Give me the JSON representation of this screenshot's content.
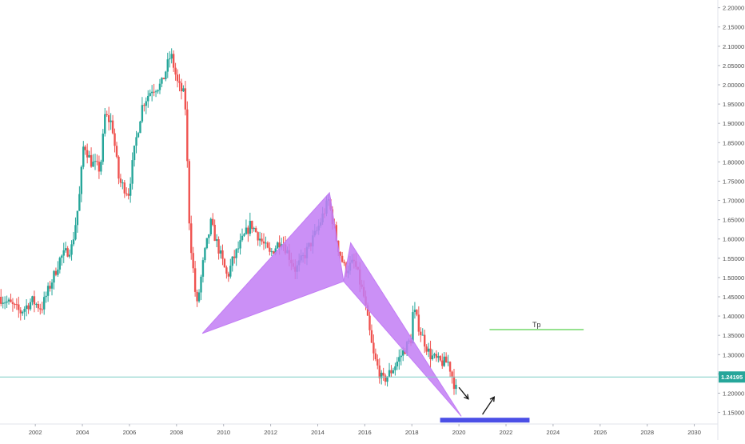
{
  "chart_data": {
    "type": "candlestick",
    "x_range": [
      2000.5,
      2031.0
    ],
    "y_range": [
      1.12,
      2.22
    ],
    "x_ticks": [
      {
        "value": 2002,
        "label": "2002"
      },
      {
        "value": 2004,
        "label": "2004"
      },
      {
        "value": 2006,
        "label": "2006"
      },
      {
        "value": 2008,
        "label": "2008"
      },
      {
        "value": 2010,
        "label": "2010"
      },
      {
        "value": 2012,
        "label": "2012"
      },
      {
        "value": 2014,
        "label": "2014"
      },
      {
        "value": 2016,
        "label": "2016"
      },
      {
        "value": 2018,
        "label": "2018"
      },
      {
        "value": 2020,
        "label": "2020"
      },
      {
        "value": 2022,
        "label": "2022"
      },
      {
        "value": 2024,
        "label": "2024"
      },
      {
        "value": 2026,
        "label": "2026"
      },
      {
        "value": 2028,
        "label": "2028"
      },
      {
        "value": 2030,
        "label": "2030"
      }
    ],
    "y_ticks": [
      {
        "value": 1.15,
        "label": "1.15000"
      },
      {
        "value": 1.2,
        "label": "1.20000"
      },
      {
        "value": 1.25,
        "label": "1.25000"
      },
      {
        "value": 1.3,
        "label": "1.30000"
      },
      {
        "value": 1.35,
        "label": "1.35000"
      },
      {
        "value": 1.4,
        "label": "1.40000"
      },
      {
        "value": 1.45,
        "label": "1.45000"
      },
      {
        "value": 1.5,
        "label": "1.50000"
      },
      {
        "value": 1.55,
        "label": "1.55000"
      },
      {
        "value": 1.6,
        "label": "1.60000"
      },
      {
        "value": 1.65,
        "label": "1.65000"
      },
      {
        "value": 1.7,
        "label": "1.70000"
      },
      {
        "value": 1.75,
        "label": "1.75000"
      },
      {
        "value": 1.8,
        "label": "1.80000"
      },
      {
        "value": 1.85,
        "label": "1.85000"
      },
      {
        "value": 1.9,
        "label": "1.90000"
      },
      {
        "value": 1.95,
        "label": "1.95000"
      },
      {
        "value": 2.0,
        "label": "2.00000"
      },
      {
        "value": 2.05,
        "label": "2.05000"
      },
      {
        "value": 2.1,
        "label": "2.10000"
      },
      {
        "value": 2.15,
        "label": "2.15000"
      },
      {
        "value": 2.2,
        "label": "2.20000"
      }
    ],
    "price_path": [
      [
        2000.5,
        1.45
      ],
      [
        2001.0,
        1.43
      ],
      [
        2001.4,
        1.41
      ],
      [
        2001.9,
        1.44
      ],
      [
        2002.3,
        1.42
      ],
      [
        2002.8,
        1.5
      ],
      [
        2003.1,
        1.55
      ],
      [
        2003.6,
        1.58
      ],
      [
        2003.9,
        1.7
      ],
      [
        2004.1,
        1.85
      ],
      [
        2004.4,
        1.8
      ],
      [
        2004.8,
        1.78
      ],
      [
        2005.0,
        1.92
      ],
      [
        2005.3,
        1.9
      ],
      [
        2005.6,
        1.75
      ],
      [
        2006.0,
        1.72
      ],
      [
        2006.3,
        1.85
      ],
      [
        2006.6,
        1.95
      ],
      [
        2007.0,
        1.99
      ],
      [
        2007.4,
        2.0
      ],
      [
        2007.8,
        2.08
      ],
      [
        2008.1,
        2.0
      ],
      [
        2008.4,
        1.97
      ],
      [
        2008.6,
        1.62
      ],
      [
        2008.9,
        1.42
      ],
      [
        2009.2,
        1.55
      ],
      [
        2009.5,
        1.64
      ],
      [
        2009.8,
        1.58
      ],
      [
        2010.2,
        1.5
      ],
      [
        2010.4,
        1.54
      ],
      [
        2010.7,
        1.58
      ],
      [
        2011.2,
        1.64
      ],
      [
        2011.6,
        1.6
      ],
      [
        2012.0,
        1.56
      ],
      [
        2012.5,
        1.6
      ],
      [
        2013.1,
        1.52
      ],
      [
        2013.5,
        1.56
      ],
      [
        2014.0,
        1.62
      ],
      [
        2014.5,
        1.7
      ],
      [
        2014.9,
        1.58
      ],
      [
        2015.2,
        1.52
      ],
      [
        2015.6,
        1.54
      ],
      [
        2016.0,
        1.45
      ],
      [
        2016.4,
        1.3
      ],
      [
        2016.8,
        1.23
      ],
      [
        2017.2,
        1.26
      ],
      [
        2017.6,
        1.3
      ],
      [
        2018.0,
        1.34
      ],
      [
        2018.1,
        1.42
      ],
      [
        2018.4,
        1.36
      ],
      [
        2018.8,
        1.3
      ],
      [
        2019.2,
        1.28
      ],
      [
        2019.6,
        1.28
      ],
      [
        2019.9,
        1.21
      ]
    ],
    "current_price": {
      "value": 1.24195,
      "label": "1.24195"
    },
    "pattern": {
      "name": "bullish harmonic pattern",
      "color": "#c27cf4",
      "point_X": [
        2009.1,
        1.355
      ],
      "point_A": [
        2014.5,
        1.72
      ],
      "point_B": [
        2015.1,
        1.49
      ],
      "point_C": [
        2015.4,
        1.59
      ],
      "point_D": [
        2020.1,
        1.14
      ]
    },
    "annotations": {
      "target_line": {
        "label": "Tp",
        "x_start": 2021.3,
        "x_end": 2025.3,
        "y": 1.365,
        "color": "#74d86a"
      },
      "target_zone": {
        "x_start": 2019.2,
        "x_end": 2023.0,
        "y": 1.13,
        "color": "#4b4fe6"
      },
      "arrow_down": {
        "from": [
          2020.0,
          1.215
        ],
        "to": [
          2020.4,
          1.185
        ]
      },
      "arrow_up": {
        "from": [
          2021.0,
          1.145
        ],
        "to": [
          2021.5,
          1.19
        ]
      }
    },
    "colors": {
      "up": "#26a69a",
      "down": "#ef5350",
      "current_line": "#7fcdc5",
      "current_badge": "#26a69a",
      "axis_text": "#4a4a4a"
    },
    "grid": false
  }
}
